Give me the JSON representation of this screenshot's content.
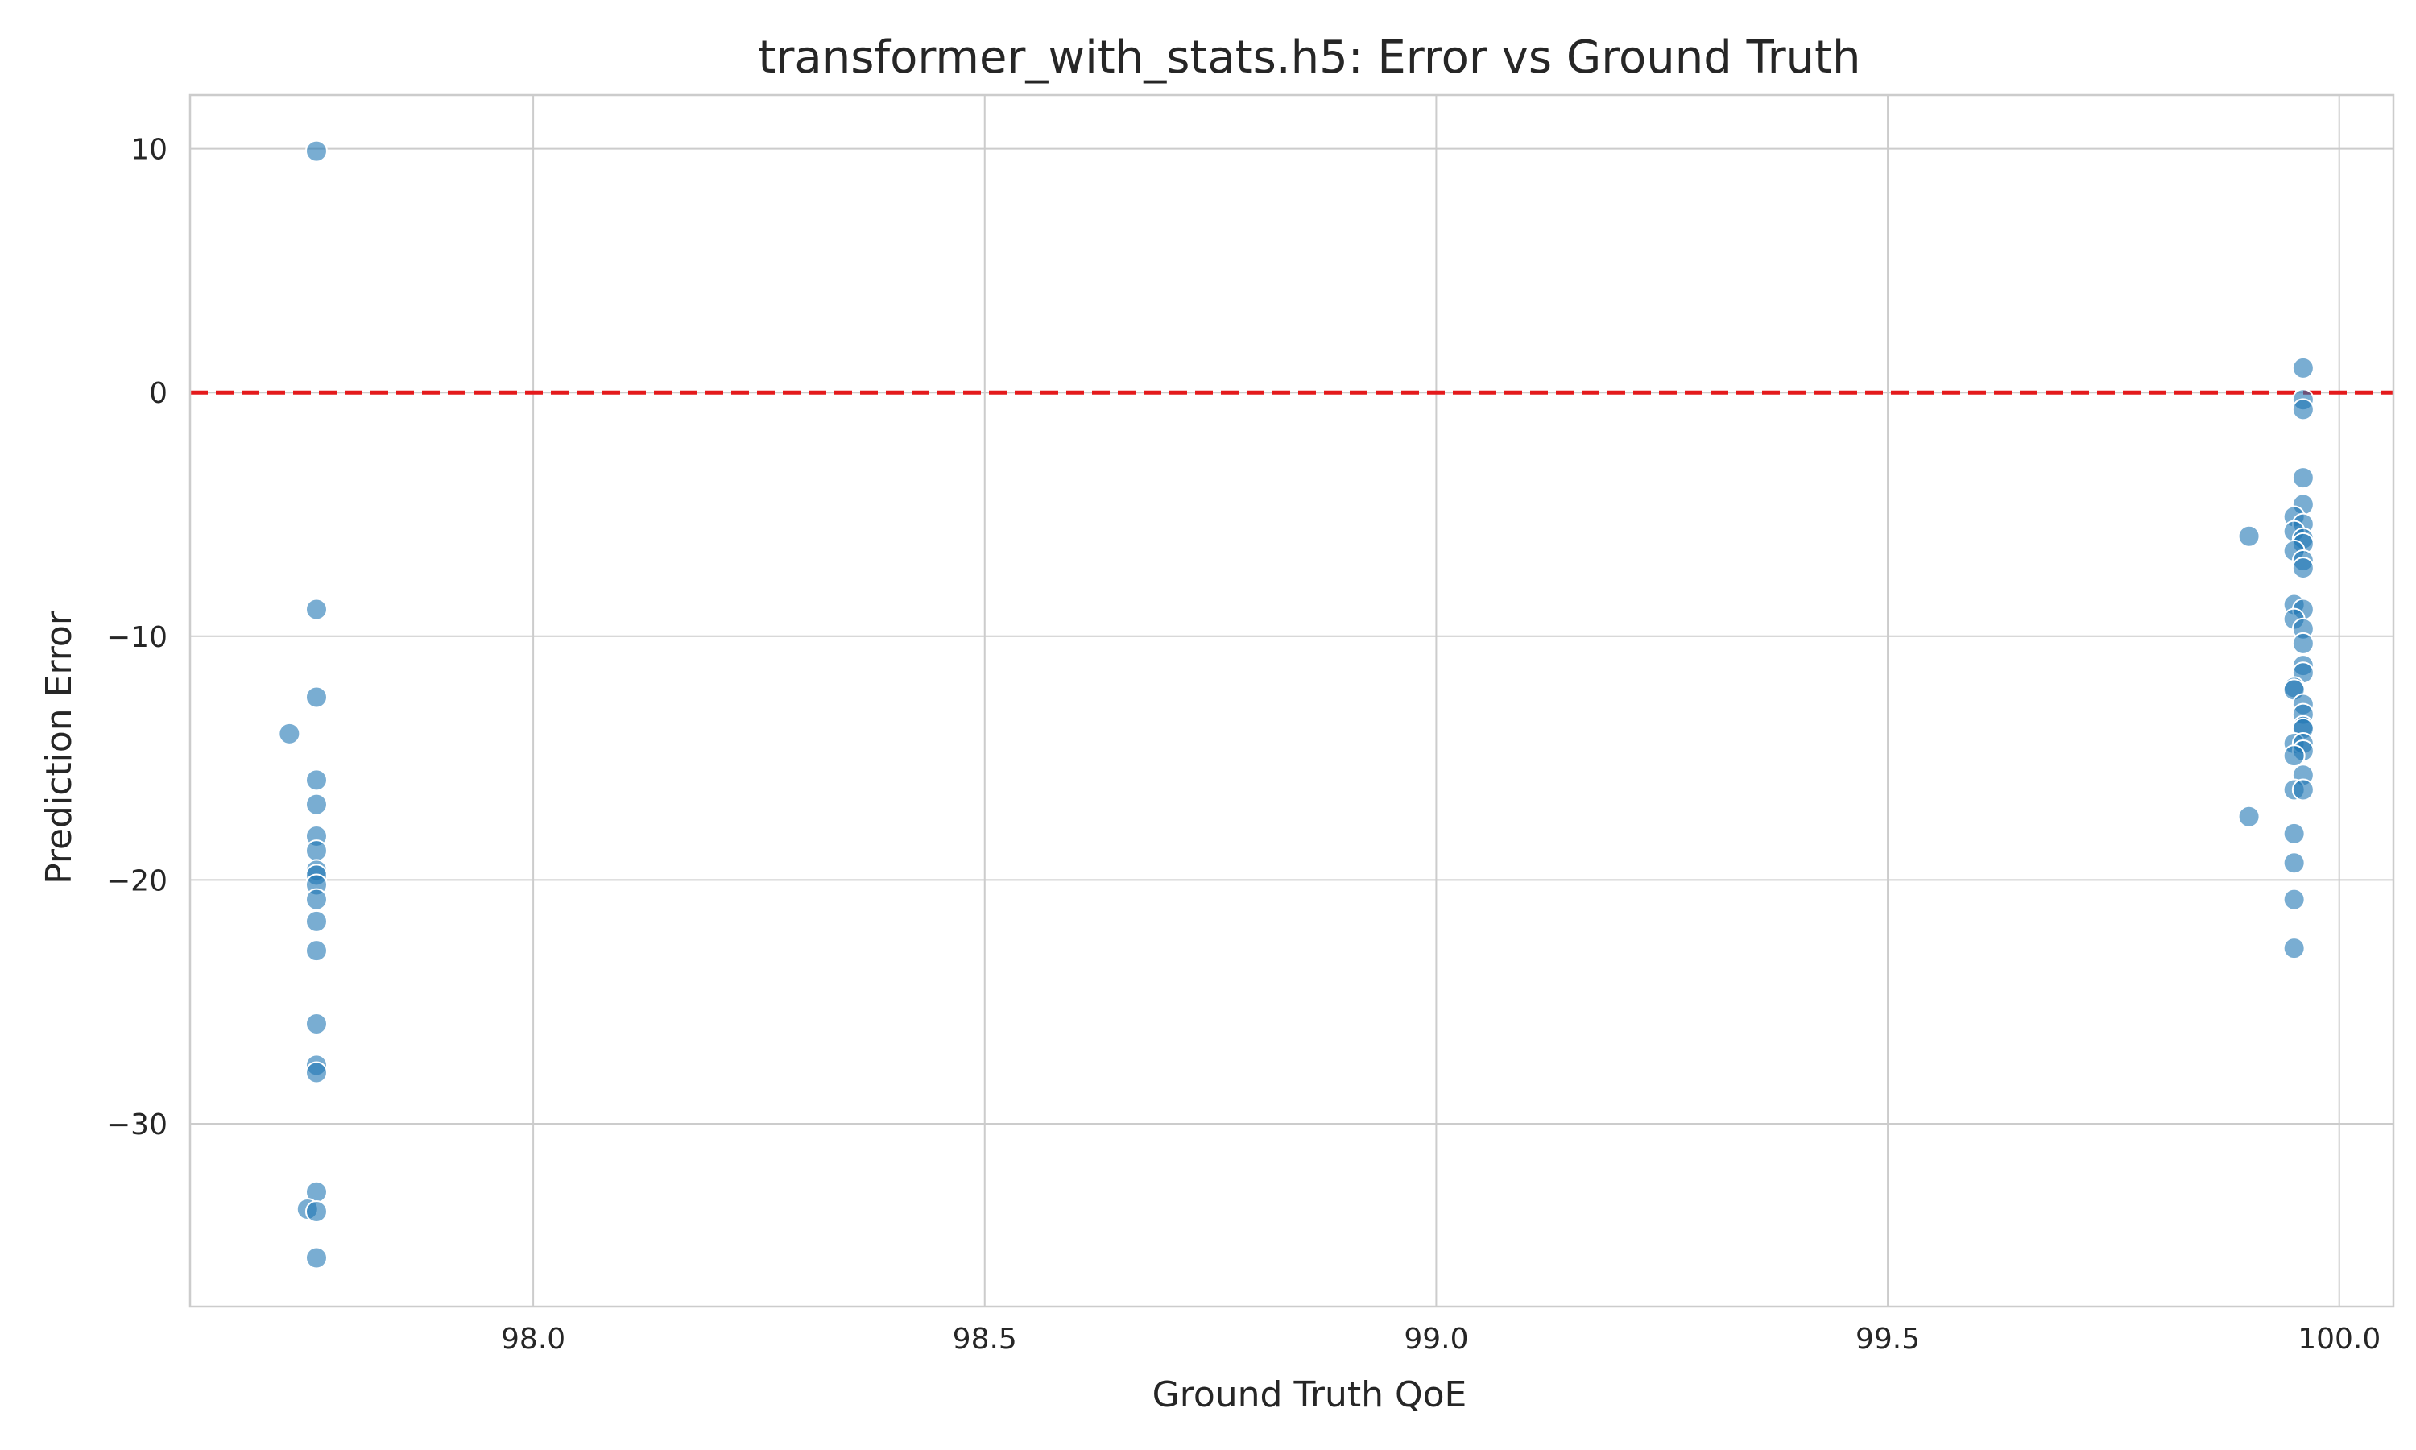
{
  "chart_data": {
    "type": "scatter",
    "title": "transformer_with_stats.h5: Error vs Ground Truth",
    "xlabel": "Ground Truth QoE",
    "ylabel": "Prediction Error",
    "xlim": [
      97.62,
      100.06
    ],
    "ylim": [
      -37.5,
      12.2
    ],
    "xticks": [
      98.0,
      98.5,
      99.0,
      99.5,
      100.0
    ],
    "xtick_labels": [
      "98.0",
      "98.5",
      "99.0",
      "99.5",
      "100.0"
    ],
    "yticks": [
      10,
      0,
      -10,
      -20,
      -30
    ],
    "ytick_labels": [
      "10",
      "0",
      "−10",
      "−20",
      "−30"
    ],
    "grid": true,
    "reference_line": {
      "y": 0,
      "color": "#e41a1c",
      "style": "dashed"
    },
    "marker_color": "#1f77b4",
    "points": [
      {
        "x": 97.76,
        "y": 9.9
      },
      {
        "x": 97.76,
        "y": -8.9
      },
      {
        "x": 97.76,
        "y": -12.5
      },
      {
        "x": 97.73,
        "y": -14.0
      },
      {
        "x": 97.76,
        "y": -15.9
      },
      {
        "x": 97.76,
        "y": -16.9
      },
      {
        "x": 97.76,
        "y": -18.2
      },
      {
        "x": 97.76,
        "y": -18.8
      },
      {
        "x": 97.76,
        "y": -19.6
      },
      {
        "x": 97.76,
        "y": -19.8
      },
      {
        "x": 97.76,
        "y": -20.2
      },
      {
        "x": 97.76,
        "y": -20.8
      },
      {
        "x": 97.76,
        "y": -21.7
      },
      {
        "x": 97.76,
        "y": -22.9
      },
      {
        "x": 97.76,
        "y": -25.9
      },
      {
        "x": 97.76,
        "y": -27.6
      },
      {
        "x": 97.76,
        "y": -27.9
      },
      {
        "x": 97.76,
        "y": -32.8
      },
      {
        "x": 97.75,
        "y": -33.5
      },
      {
        "x": 97.76,
        "y": -33.6
      },
      {
        "x": 97.76,
        "y": -35.5
      },
      {
        "x": 99.96,
        "y": 1.0
      },
      {
        "x": 99.96,
        "y": -0.3
      },
      {
        "x": 99.96,
        "y": -0.7
      },
      {
        "x": 99.96,
        "y": -3.5
      },
      {
        "x": 99.96,
        "y": -4.6
      },
      {
        "x": 99.95,
        "y": -5.1
      },
      {
        "x": 99.96,
        "y": -5.4
      },
      {
        "x": 99.95,
        "y": -5.7
      },
      {
        "x": 99.9,
        "y": -5.9
      },
      {
        "x": 99.96,
        "y": -6.0
      },
      {
        "x": 99.96,
        "y": -6.2
      },
      {
        "x": 99.95,
        "y": -6.5
      },
      {
        "x": 99.96,
        "y": -6.9
      },
      {
        "x": 99.96,
        "y": -7.2
      },
      {
        "x": 99.95,
        "y": -8.7
      },
      {
        "x": 99.96,
        "y": -8.9
      },
      {
        "x": 99.95,
        "y": -9.3
      },
      {
        "x": 99.96,
        "y": -9.7
      },
      {
        "x": 99.96,
        "y": -10.3
      },
      {
        "x": 99.96,
        "y": -11.2
      },
      {
        "x": 99.96,
        "y": -11.5
      },
      {
        "x": 99.95,
        "y": -12.1
      },
      {
        "x": 99.95,
        "y": -12.2
      },
      {
        "x": 99.96,
        "y": -12.8
      },
      {
        "x": 99.96,
        "y": -13.2
      },
      {
        "x": 99.96,
        "y": -13.7
      },
      {
        "x": 99.96,
        "y": -13.8
      },
      {
        "x": 99.95,
        "y": -14.4
      },
      {
        "x": 99.96,
        "y": -14.4
      },
      {
        "x": 99.96,
        "y": -14.7
      },
      {
        "x": 99.95,
        "y": -14.9
      },
      {
        "x": 99.96,
        "y": -15.7
      },
      {
        "x": 99.95,
        "y": -16.3
      },
      {
        "x": 99.96,
        "y": -16.3
      },
      {
        "x": 99.9,
        "y": -17.4
      },
      {
        "x": 99.95,
        "y": -18.1
      },
      {
        "x": 99.95,
        "y": -19.3
      },
      {
        "x": 99.95,
        "y": -20.8
      },
      {
        "x": 99.95,
        "y": -22.8
      }
    ]
  }
}
